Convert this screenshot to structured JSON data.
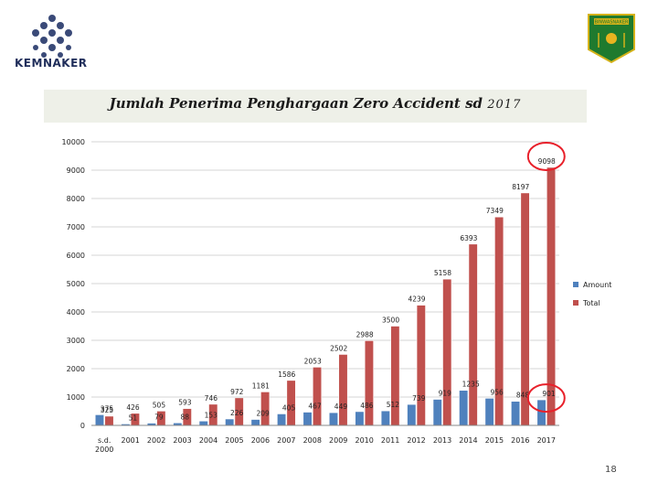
{
  "header": {
    "left_logo_text": "KEMNAKER",
    "right_logo_text": "BINWASNAKER"
  },
  "title": {
    "main": "Jumlah Penerima Penghargaan Zero Accident sd",
    "year": "2017"
  },
  "page_number": "18",
  "colors": {
    "amount": "#4f81bd",
    "total": "#c0504d",
    "highlight": "#e8202a"
  },
  "chart_data": {
    "type": "bar",
    "categories": [
      "s.d. 2000",
      "2001",
      "2002",
      "2003",
      "2004",
      "2005",
      "2006",
      "2007",
      "2008",
      "2009",
      "2010",
      "2011",
      "2012",
      "2013",
      "2014",
      "2015",
      "2016",
      "2017"
    ],
    "category_lines": [
      [
        "s.d.",
        "2000"
      ],
      [
        "2001"
      ],
      [
        "2002"
      ],
      [
        "2003"
      ],
      [
        "2004"
      ],
      [
        "2005"
      ],
      [
        "2006"
      ],
      [
        "2007"
      ],
      [
        "2008"
      ],
      [
        "2009"
      ],
      [
        "2010"
      ],
      [
        "2011"
      ],
      [
        "2012"
      ],
      [
        "2013"
      ],
      [
        "2014"
      ],
      [
        "2015"
      ],
      [
        "2016"
      ],
      [
        "2017"
      ]
    ],
    "series": [
      {
        "name": "Amount",
        "values": [
          375,
          51,
          79,
          88,
          153,
          226,
          209,
          405,
          467,
          449,
          486,
          512,
          739,
          919,
          1235,
          956,
          848,
          901
        ]
      },
      {
        "name": "Total",
        "values": [
          325,
          426,
          505,
          593,
          746,
          972,
          1181,
          1586,
          2053,
          2502,
          2988,
          3500,
          4239,
          5158,
          6393,
          7349,
          8197,
          9098
        ]
      }
    ],
    "amount_labels": [
      "375",
      "51",
      "79",
      "88",
      "153",
      "226",
      "209",
      "405",
      "467",
      "449",
      "486",
      "512",
      "739",
      "919",
      "1235",
      "956",
      "848",
      "901"
    ],
    "total_labels": [
      "325",
      "426",
      "505",
      "593",
      "746",
      "972",
      "1181",
      "1586",
      "2053",
      "2502",
      "2988",
      "3500",
      "4239",
      "5158",
      "6393",
      "7349",
      "8197",
      "9098"
    ],
    "yticks": [
      "0",
      "1000",
      "2000",
      "3000",
      "4000",
      "5000",
      "6000",
      "7000",
      "8000",
      "9000",
      "10000"
    ],
    "ylim": [
      0,
      10000
    ],
    "legend": [
      "Amount",
      "Total"
    ],
    "legend_position": "right",
    "highlighted_categories": [
      "2017"
    ]
  }
}
